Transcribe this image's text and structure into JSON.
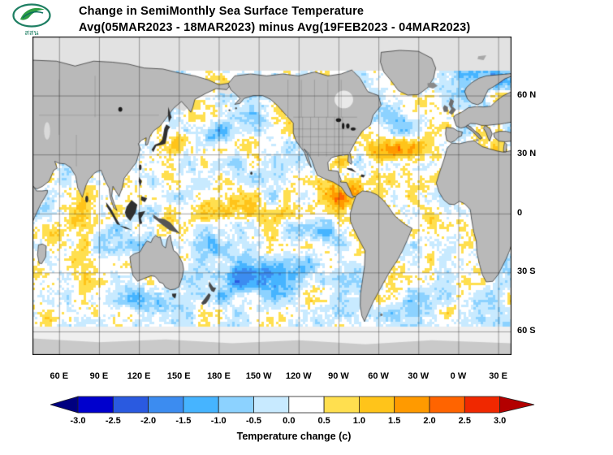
{
  "header": {
    "title": "Change in SemiMonthly Sea Surface Temperature",
    "subtitle": "Avg(05MAR2023 - 18MAR2023) minus Avg(19FEB2023 - 04MAR2023)"
  },
  "logo": {
    "name": "hii-leaf-logo",
    "caption": "สสน",
    "ring_color": "#1e7f63",
    "leaf_color": "#2f9e44",
    "wave_color": "#0c6e5f"
  },
  "axes": {
    "lat_ticks": [
      {
        "label": "60 N",
        "lat": 60
      },
      {
        "label": "30 N",
        "lat": 30
      },
      {
        "label": "0",
        "lat": 0
      },
      {
        "label": "30 S",
        "lat": -30
      },
      {
        "label": "60 S",
        "lat": -60
      }
    ],
    "lon_ticks": [
      {
        "label": "60 E",
        "lon": 60
      },
      {
        "label": "90 E",
        "lon": 90
      },
      {
        "label": "120 E",
        "lon": 120
      },
      {
        "label": "150 E",
        "lon": 150
      },
      {
        "label": "180 E",
        "lon": 180
      },
      {
        "label": "150 W",
        "lon": 210
      },
      {
        "label": "120 W",
        "lon": 240
      },
      {
        "label": "90 W",
        "lon": 270
      },
      {
        "label": "60 W",
        "lon": 300
      },
      {
        "label": "30 W",
        "lon": 330
      },
      {
        "label": "0 W",
        "lon": 360
      },
      {
        "label": "30 E",
        "lon": 390
      }
    ]
  },
  "colorbar": {
    "label": "Temperature change (c)",
    "tick_labels": [
      "-3.0",
      "-2.5",
      "-2.0",
      "-1.5",
      "-1.0",
      "-0.5",
      "0.0",
      "0.5",
      "1.0",
      "1.5",
      "2.0",
      "2.5",
      "3.0"
    ],
    "colors": [
      "#000080",
      "#0000cd",
      "#2a5ae0",
      "#3c8cf0",
      "#46b4ff",
      "#8cd2ff",
      "#c8eaff",
      "#ffffff",
      "#ffdf4f",
      "#ffc41a",
      "#ff9a00",
      "#ff6400",
      "#f02800",
      "#b30000"
    ]
  },
  "map": {
    "anomaly_features": [
      [
        268,
        9,
        12,
        4.5,
        1.9
      ],
      [
        285,
        13,
        5,
        3.5,
        1.0
      ],
      [
        232,
        0,
        32,
        3.5,
        1.1
      ],
      [
        188,
        2,
        18,
        4,
        0.8
      ],
      [
        272,
        25.5,
        6,
        3,
        1.0
      ],
      [
        315,
        32,
        16,
        4.5,
        1.0
      ],
      [
        380,
        28,
        9,
        4,
        0.8
      ],
      [
        152,
        36,
        7,
        3.5,
        1.0
      ],
      [
        238,
        50,
        8,
        3.5,
        0.7
      ],
      [
        55,
        -12,
        8,
        6,
        0.9
      ],
      [
        75,
        -3,
        10,
        5,
        0.7
      ],
      [
        88,
        12,
        6,
        4,
        0.6
      ],
      [
        300,
        -20,
        9,
        6,
        0.7
      ],
      [
        348,
        -5,
        9,
        5,
        0.6
      ],
      [
        205,
        -33,
        26,
        7,
        -1.5
      ],
      [
        243,
        -27,
        13,
        6,
        -0.9
      ],
      [
        176,
        40,
        13,
        4.5,
        -1.1
      ],
      [
        207,
        47,
        11,
        4,
        -0.9
      ],
      [
        385,
        70,
        13,
        5,
        -1.3
      ],
      [
        128,
        -47,
        14,
        5,
        -0.9
      ],
      [
        336,
        -42,
        12,
        6,
        -0.8
      ],
      [
        264,
        -12,
        10,
        5,
        -0.7
      ],
      [
        172,
        -17,
        11,
        5,
        -0.8
      ],
      [
        122,
        -16,
        8,
        4,
        -0.7
      ],
      [
        322,
        46,
        10,
        4,
        -0.8
      ],
      [
        244,
        32,
        6,
        4,
        -0.5
      ],
      [
        100,
        -12,
        9,
        5,
        -0.4
      ]
    ]
  },
  "chart_data": {
    "type": "heatmap",
    "title": "Change in SemiMonthly Sea Surface Temperature",
    "subtitle": "Avg(05MAR2023 - 18MAR2023) minus Avg(19FEB2023 - 04MAR2023)",
    "units": "Temperature change (c)",
    "scale_ticks": [
      -3.0,
      -2.5,
      -2.0,
      -1.5,
      -1.0,
      -0.5,
      0.0,
      0.5,
      1.0,
      1.5,
      2.0,
      2.5,
      3.0
    ],
    "lat_tick_labels": [
      "60 N",
      "30 N",
      "0",
      "30 S",
      "60 S"
    ],
    "lon_tick_labels": [
      "60 E",
      "90 E",
      "120 E",
      "150 E",
      "180 E",
      "150 W",
      "120 W",
      "90 W",
      "60 W",
      "30 W",
      "0 W",
      "30 E"
    ]
  }
}
